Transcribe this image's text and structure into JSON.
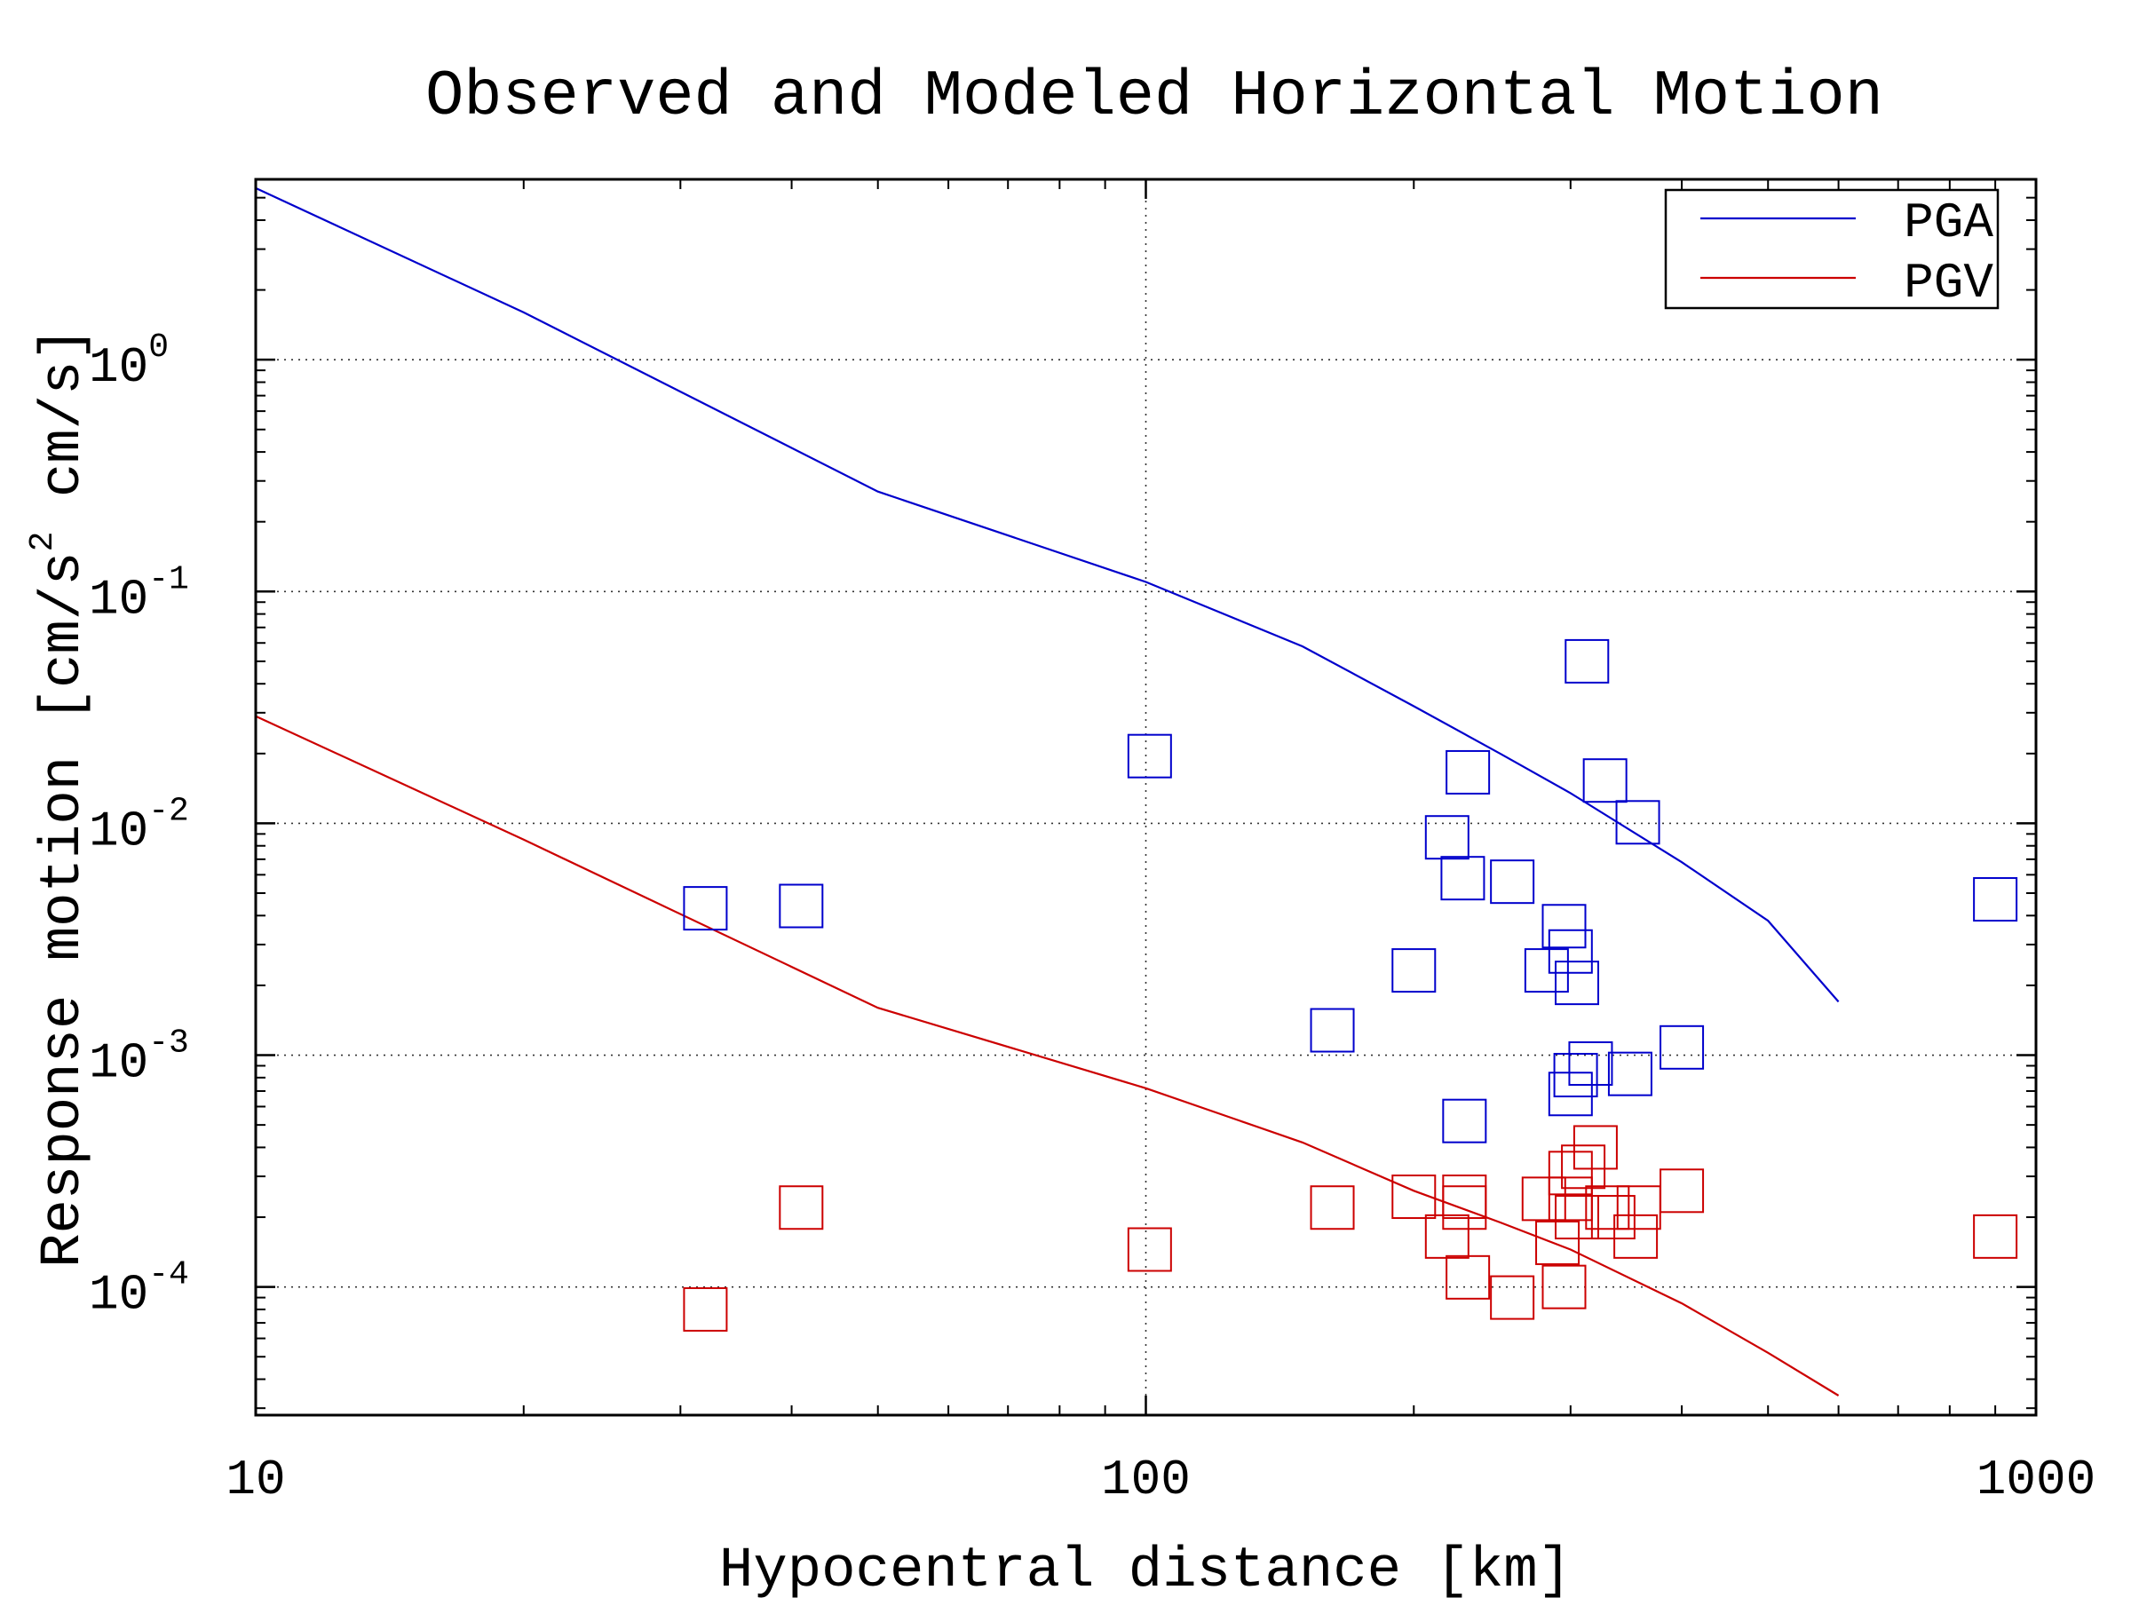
{
  "chart_data": {
    "type": "scatter",
    "title": "Observed and Modeled Horizontal Motion",
    "xlabel": "Hypocentral distance [km]",
    "ylabel": {
      "prefix": "Response motion  [cm/s",
      "sup": "2",
      "suffix": "  cm/s]"
    },
    "xscale": "log",
    "yscale": "log",
    "xlim": [
      10,
      1000
    ],
    "ylim": [
      2.8e-05,
      6
    ],
    "grid": true,
    "legend_position": "top-right",
    "x_ticks": [
      {
        "value": 10,
        "label": "10"
      },
      {
        "value": 100,
        "label": "100"
      },
      {
        "value": 1000,
        "label": "1000"
      }
    ],
    "y_ticks": [
      {
        "value": 1,
        "base": "10",
        "exp": "0"
      },
      {
        "value": 0.1,
        "base": "10",
        "exp": "-1"
      },
      {
        "value": 0.01,
        "base": "10",
        "exp": "-2"
      },
      {
        "value": 0.001,
        "base": "10",
        "exp": "-3"
      },
      {
        "value": 0.0001,
        "base": "10",
        "exp": "-4"
      }
    ],
    "series": [
      {
        "name": "PGA",
        "kind": "line",
        "color": "#0000cc",
        "points": [
          [
            10,
            5.5
          ],
          [
            20,
            1.6
          ],
          [
            50,
            0.27
          ],
          [
            100,
            0.11
          ],
          [
            150,
            0.058
          ],
          [
            200,
            0.032
          ],
          [
            250,
            0.02
          ],
          [
            300,
            0.0135
          ],
          [
            400,
            0.0068
          ],
          [
            500,
            0.0038
          ],
          [
            600,
            0.0017
          ]
        ]
      },
      {
        "name": "PGV",
        "kind": "line",
        "color": "#cc0000",
        "points": [
          [
            10,
            0.029
          ],
          [
            20,
            0.0085
          ],
          [
            50,
            0.0016
          ],
          [
            100,
            0.00072
          ],
          [
            150,
            0.00042
          ],
          [
            200,
            0.00026
          ],
          [
            250,
            0.00019
          ],
          [
            300,
            0.000145
          ],
          [
            400,
            8.5e-05
          ],
          [
            500,
            5.2e-05
          ],
          [
            600,
            3.4e-05
          ]
        ]
      },
      {
        "name": "",
        "kind": "scatter",
        "color": "#0000cc",
        "points": [
          [
            32,
            0.0043
          ],
          [
            41,
            0.0044
          ],
          [
            101,
            0.0195
          ],
          [
            162,
            0.00128
          ],
          [
            200,
            0.00232
          ],
          [
            218,
            0.0087
          ],
          [
            227,
            0.0058
          ],
          [
            228,
            0.00052
          ],
          [
            230,
            0.0166
          ],
          [
            258,
            0.0056
          ],
          [
            282,
            0.00232
          ],
          [
            295,
            0.0036
          ],
          [
            300,
            0.0028
          ],
          [
            300,
            0.00068
          ],
          [
            304,
            0.00082
          ],
          [
            305,
            0.00205
          ],
          [
            313,
            0.05
          ],
          [
            316,
            0.00092
          ],
          [
            328,
            0.0153
          ],
          [
            350,
            0.00083
          ],
          [
            357,
            0.0101
          ],
          [
            400,
            0.00108
          ],
          [
            900,
            0.0047
          ]
        ]
      },
      {
        "name": "",
        "kind": "scatter",
        "color": "#cc0000",
        "points": [
          [
            32,
            8e-05
          ],
          [
            41,
            0.00022
          ],
          [
            101,
            0.000145
          ],
          [
            162,
            0.00022
          ],
          [
            200,
            0.000245
          ],
          [
            218,
            0.000165
          ],
          [
            228,
            0.000245
          ],
          [
            228,
            0.00022
          ],
          [
            230,
            0.00011
          ],
          [
            258,
            9e-05
          ],
          [
            280,
            0.00024
          ],
          [
            290,
            0.000155
          ],
          [
            295,
            0.0001
          ],
          [
            300,
            0.00031
          ],
          [
            300,
            0.00024
          ],
          [
            305,
            0.0002
          ],
          [
            310,
            0.00033
          ],
          [
            320,
            0.0004
          ],
          [
            330,
            0.00022
          ],
          [
            335,
            0.0002
          ],
          [
            355,
            0.000165
          ],
          [
            358,
            0.00022
          ],
          [
            400,
            0.00026
          ],
          [
            900,
            0.000165
          ]
        ]
      }
    ]
  }
}
